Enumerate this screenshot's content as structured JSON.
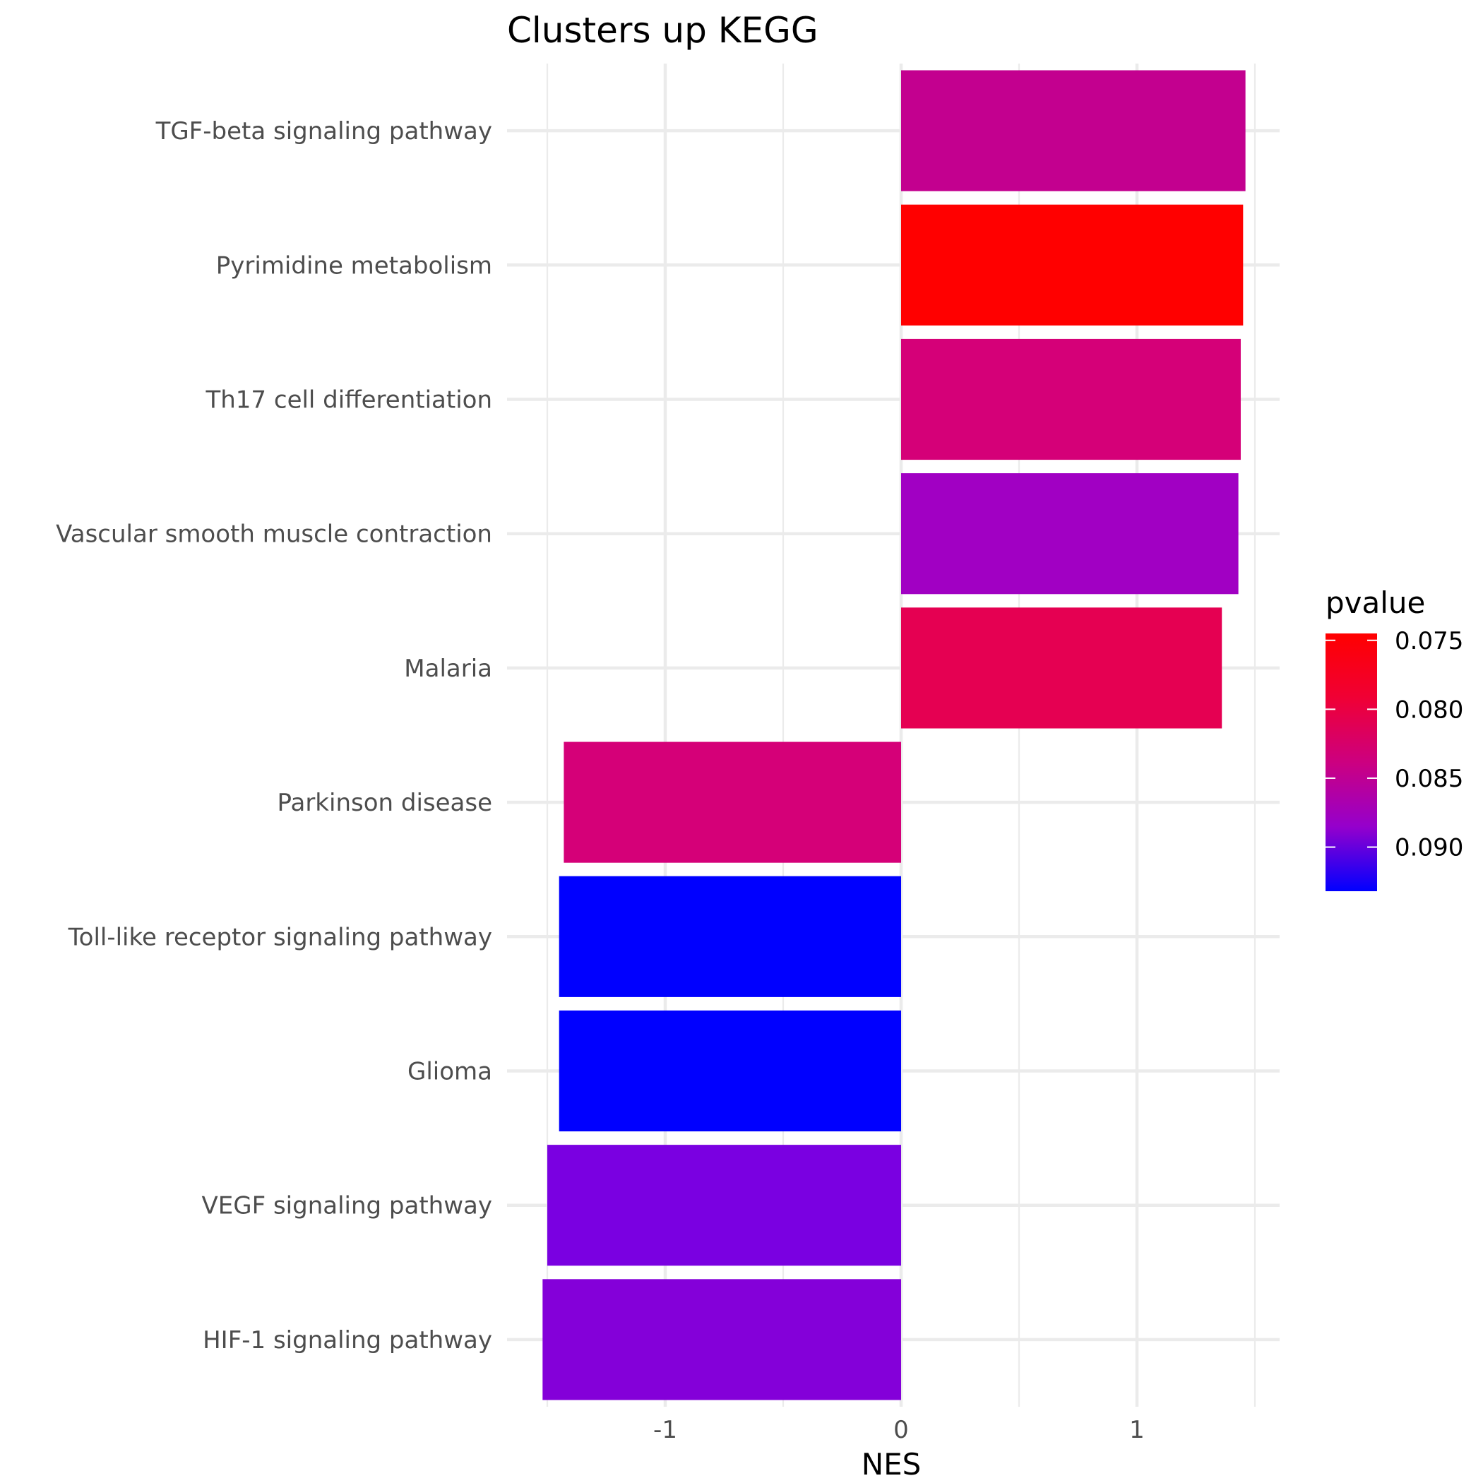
{
  "chart_data": {
    "type": "bar",
    "orientation": "horizontal",
    "title": "Clusters up KEGG",
    "xlabel": "NES",
    "ylabel": "",
    "xlim": [
      -1.55,
      1.6
    ],
    "xticks": [
      -1,
      0,
      1
    ],
    "x_minor_ticks": [
      -1.5,
      -0.5,
      0.5,
      1.5
    ],
    "grid": true,
    "categories": [
      "TGF-beta signaling pathway",
      "Pyrimidine metabolism",
      "Th17 cell differentiation",
      "Vascular smooth muscle contraction",
      "Malaria",
      "Parkinson disease",
      "Toll-like receptor signaling pathway",
      "Glioma",
      "VEGF signaling pathway",
      "HIF-1 signaling pathway"
    ],
    "values": [
      1.46,
      1.45,
      1.44,
      1.43,
      1.36,
      -1.43,
      -1.45,
      -1.45,
      -1.5,
      -1.52
    ],
    "pvalues": [
      0.0845,
      0.0755,
      0.0832,
      0.088,
      0.08,
      0.083,
      0.093,
      0.093,
      0.0905,
      0.0898
    ],
    "bar_colors": [
      "#c3008f",
      "#ff0000",
      "#d50078",
      "#a100c3",
      "#e50052",
      "#d50078",
      "#0000ff",
      "#0000ff",
      "#7a00e1",
      "#8400d9"
    ],
    "legend": {
      "title": "pvalue",
      "placement": "right",
      "labels": [
        "0.075",
        "0.080",
        "0.085",
        "0.090"
      ],
      "breaks": [
        0.075,
        0.08,
        0.085,
        0.09
      ],
      "range": [
        0.0745,
        0.0932
      ],
      "color_low_p": "#ff0000",
      "color_high_p": "#0000ff"
    }
  }
}
